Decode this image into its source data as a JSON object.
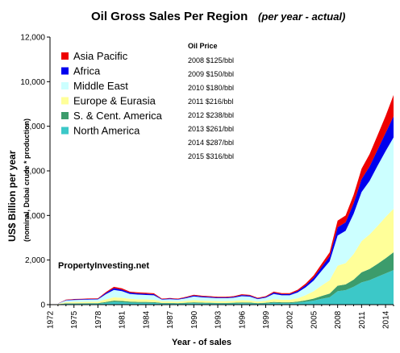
{
  "chart_data": {
    "type": "area",
    "stacked": true,
    "title": "Oil Gross Sales Per Region",
    "subtitle": "(per year - actual)",
    "xlabel": "Year - of sales",
    "ylabel": "US$ Billion per year",
    "ylabel_sub": "(nominal, Dubai crude * production)",
    "xlim": [
      1972,
      2015
    ],
    "ylim": [
      0,
      12000
    ],
    "yticks": [
      "0",
      "2,000",
      "4,000",
      "6,000",
      "8,000",
      "10,000",
      "12,000"
    ],
    "ytick_values": [
      0,
      2000,
      4000,
      6000,
      8000,
      10000,
      12000
    ],
    "xticks": [
      "1972",
      "1975",
      "1978",
      "1981",
      "1984",
      "1987",
      "1990",
      "1993",
      "1996",
      "1999",
      "2002",
      "2005",
      "2008",
      "2011",
      "2014"
    ],
    "xtick_values": [
      1972,
      1975,
      1978,
      1981,
      1984,
      1987,
      1990,
      1993,
      1996,
      1999,
      2002,
      2005,
      2008,
      2011,
      2014
    ],
    "grid": false,
    "legend_position": "top-left",
    "x": [
      1973,
      1974,
      1975,
      1976,
      1977,
      1978,
      1979,
      1980,
      1981,
      1982,
      1983,
      1984,
      1985,
      1986,
      1987,
      1988,
      1989,
      1990,
      1991,
      1992,
      1993,
      1994,
      1995,
      1996,
      1997,
      1998,
      1999,
      2000,
      2001,
      2002,
      2003,
      2004,
      2005,
      2006,
      2007,
      2008,
      2009,
      2010,
      2011,
      2012,
      2013,
      2014,
      2015
    ],
    "series": [
      {
        "name": "North America",
        "color": "#3cc8c8",
        "values": [
          10,
          40,
          40,
          42,
          45,
          45,
          80,
          120,
          110,
          90,
          80,
          80,
          75,
          50,
          50,
          45,
          55,
          70,
          60,
          55,
          50,
          50,
          55,
          65,
          60,
          45,
          55,
          80,
          70,
          70,
          90,
          130,
          180,
          260,
          330,
          600,
          650,
          800,
          1000,
          1100,
          1250,
          1400,
          1550
        ]
      },
      {
        "name": "S. & Cent. America",
        "color": "#3c9c6c",
        "values": [
          5,
          20,
          20,
          20,
          22,
          22,
          40,
          60,
          55,
          45,
          40,
          40,
          38,
          25,
          25,
          25,
          30,
          35,
          30,
          30,
          28,
          28,
          30,
          35,
          35,
          25,
          30,
          40,
          35,
          35,
          45,
          65,
          90,
          130,
          165,
          250,
          260,
          320,
          450,
          500,
          580,
          680,
          800
        ]
      },
      {
        "name": "Europe & Eurasia",
        "color": "#ffff99",
        "values": [
          10,
          50,
          60,
          62,
          65,
          68,
          120,
          150,
          140,
          125,
          120,
          115,
          110,
          70,
          70,
          65,
          80,
          100,
          90,
          85,
          80,
          80,
          85,
          100,
          95,
          70,
          85,
          130,
          115,
          115,
          150,
          230,
          330,
          470,
          600,
          900,
          950,
          1150,
          1400,
          1550,
          1700,
          1850,
          1950
        ]
      },
      {
        "name": "Middle East",
        "color": "#ccffff",
        "values": [
          20,
          80,
          90,
          95,
          100,
          100,
          230,
          330,
          300,
          220,
          210,
          200,
          195,
          80,
          100,
          90,
          120,
          160,
          150,
          140,
          130,
          130,
          140,
          180,
          170,
          110,
          140,
          230,
          200,
          200,
          260,
          350,
          480,
          660,
          850,
          1350,
          1450,
          1800,
          2200,
          2400,
          2700,
          2950,
          3200
        ]
      },
      {
        "name": "Africa",
        "color": "#0000ee",
        "values": [
          5,
          20,
          25,
          25,
          27,
          28,
          55,
          80,
          70,
          60,
          55,
          55,
          52,
          25,
          30,
          25,
          35,
          45,
          40,
          38,
          35,
          35,
          38,
          48,
          45,
          30,
          38,
          60,
          55,
          55,
          70,
          95,
          130,
          170,
          220,
          370,
          380,
          470,
          580,
          650,
          720,
          820,
          950
        ]
      },
      {
        "name": "Asia Pacific",
        "color": "#ee0000",
        "values": [
          5,
          15,
          18,
          18,
          20,
          20,
          40,
          60,
          55,
          45,
          45,
          45,
          42,
          20,
          25,
          22,
          28,
          35,
          32,
          30,
          28,
          28,
          30,
          38,
          35,
          25,
          30,
          45,
          42,
          42,
          55,
          75,
          100,
          140,
          180,
          300,
          310,
          380,
          470,
          550,
          650,
          760,
          950
        ]
      }
    ]
  },
  "legend": [
    {
      "label": "Asia Pacific",
      "color": "#ee0000"
    },
    {
      "label": "Africa",
      "color": "#0000ee"
    },
    {
      "label": "Middle East",
      "color": "#ccffff"
    },
    {
      "label": "Europe & Eurasia",
      "color": "#ffff99"
    },
    {
      "label": "S. & Cent. America",
      "color": "#3c9c6c"
    },
    {
      "label": "North America",
      "color": "#3cc8c8"
    }
  ],
  "oil_price": {
    "heading": "Oil Price",
    "rows": [
      "2008  $125/bbl",
      "2009  $150/bbl",
      "2010 $180/bbl",
      "2011 $216/bbl",
      "2012 $238/bbl",
      "2013 $261/bbl",
      "2014 $287/bbl",
      "2015 $316/bbl"
    ]
  },
  "watermark": "PropertyInvesting.net"
}
